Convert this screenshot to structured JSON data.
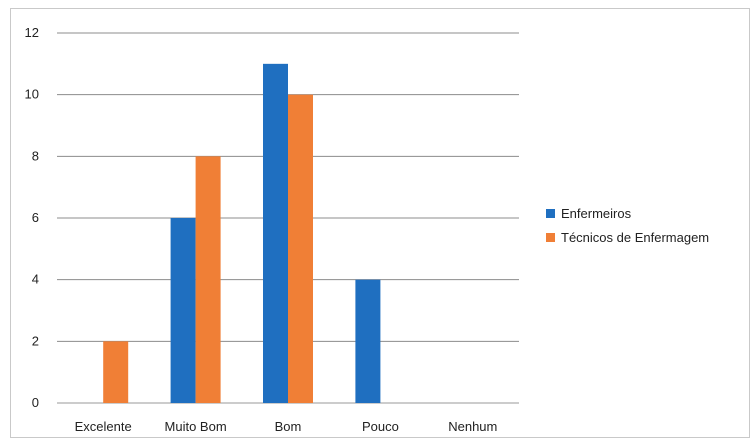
{
  "chart_data": {
    "type": "bar",
    "categories": [
      "Excelente",
      "Muito Bom",
      "Bom",
      "Pouco",
      "Nenhum"
    ],
    "series": [
      {
        "name": "Enfermeiros",
        "color": "#1f6fc0",
        "values": [
          0,
          6,
          11,
          4,
          0
        ]
      },
      {
        "name": "Técnicos de Enfermagem",
        "color": "#f07f36",
        "values": [
          2,
          8,
          10,
          0,
          0
        ]
      }
    ],
    "ylim": [
      0,
      12
    ],
    "yticks": [
      0,
      2,
      4,
      6,
      8,
      10,
      12
    ],
    "grid": true,
    "legend": "right"
  }
}
